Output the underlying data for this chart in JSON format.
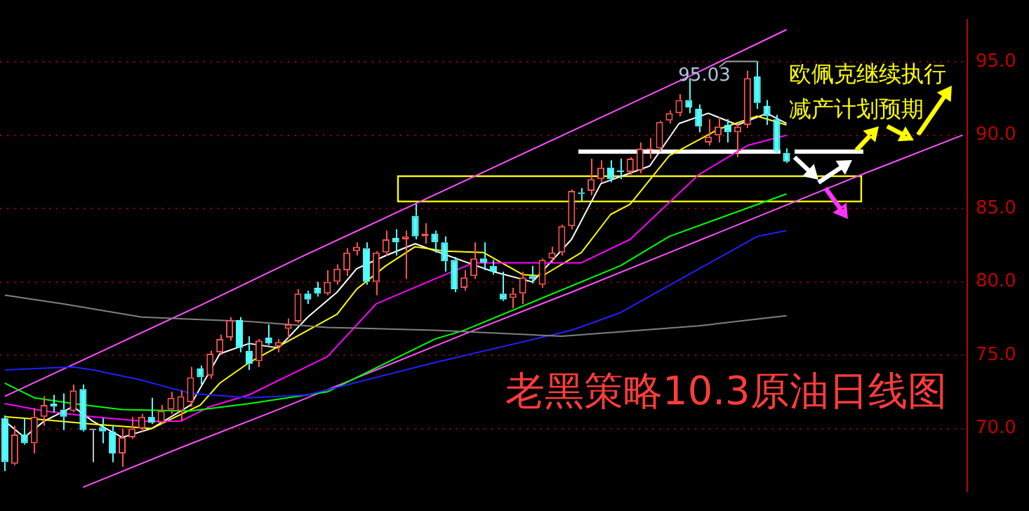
{
  "chart_data": {
    "type": "candlestick",
    "title": "老黑策略10.3原油日线图",
    "annotations": [
      {
        "text": "95.03",
        "y": 95.03
      },
      "欧佩克继续执行减产计划预期"
    ],
    "categories": [
      null,
      null,
      null,
      null,
      null,
      null,
      null,
      null,
      null,
      null,
      null,
      null,
      null,
      null,
      null,
      null,
      null,
      null,
      null,
      null,
      null,
      null,
      null,
      null,
      null,
      null,
      null,
      null,
      null,
      null,
      null,
      null,
      null,
      null,
      null,
      null,
      null,
      null,
      null,
      null,
      null,
      null,
      null,
      null,
      null,
      null,
      null,
      null,
      null,
      null,
      null,
      null,
      null,
      null,
      null,
      null,
      null,
      null,
      null,
      null,
      null,
      null,
      null,
      null,
      null,
      null,
      null,
      null,
      null,
      null,
      null,
      null,
      null,
      null,
      null,
      null,
      null,
      null,
      null,
      null,
      null,
      null,
      null,
      null,
      null,
      null,
      null,
      null,
      null,
      null,
      null,
      null,
      null,
      null,
      null,
      null,
      null,
      null,
      null
    ],
    "ohlc": [
      [
        70.7,
        70.9,
        67.1,
        67.7
      ],
      [
        67.6,
        70.2,
        67.5,
        69.6
      ],
      [
        69.6,
        70.7,
        68.9,
        69.0
      ],
      [
        69.0,
        71.4,
        68.3,
        70.8
      ],
      [
        70.8,
        72.2,
        70.2,
        71.6
      ],
      [
        71.7,
        72.3,
        71.1,
        71.5
      ],
      [
        71.3,
        72.4,
        69.9,
        70.8
      ],
      [
        71.2,
        73.0,
        71.1,
        72.6
      ],
      [
        72.7,
        73.0,
        69.8,
        69.9
      ],
      [
        69.9,
        69.9,
        67.7,
        69.9
      ],
      [
        70.1,
        70.7,
        69.0,
        69.8
      ],
      [
        69.8,
        70.2,
        67.7,
        68.3
      ],
      [
        68.3,
        70.0,
        67.4,
        69.4
      ],
      [
        69.4,
        70.8,
        69.3,
        70.0
      ],
      [
        70.0,
        71.0,
        69.8,
        70.8
      ],
      [
        70.8,
        72.1,
        70.3,
        70.4
      ],
      [
        70.4,
        71.6,
        70.3,
        71.2
      ],
      [
        71.3,
        72.5,
        71.0,
        72.1
      ],
      [
        71.2,
        72.6,
        70.5,
        72.2
      ],
      [
        71.8,
        74.2,
        71.5,
        73.5
      ],
      [
        74.1,
        74.3,
        73.0,
        73.5
      ],
      [
        73.6,
        75.3,
        73.4,
        75.1
      ],
      [
        75.2,
        76.4,
        75.0,
        76.1
      ],
      [
        76.2,
        77.6,
        76.0,
        77.4
      ],
      [
        77.4,
        77.6,
        75.2,
        75.5
      ],
      [
        75.3,
        76.3,
        74.0,
        74.4
      ],
      [
        74.6,
        76.1,
        74.2,
        76.0
      ],
      [
        76.2,
        77.1,
        75.7,
        75.8
      ],
      [
        75.6,
        76.1,
        75.2,
        75.9
      ],
      [
        76.8,
        77.5,
        76.2,
        77.1
      ],
      [
        77.3,
        79.5,
        77.2,
        79.2
      ],
      [
        79.2,
        79.4,
        78.5,
        78.8
      ],
      [
        79.6,
        80.0,
        79.0,
        79.2
      ],
      [
        79.2,
        80.8,
        79.1,
        80.0
      ],
      [
        80.0,
        81.2,
        79.8,
        80.9
      ],
      [
        80.8,
        82.3,
        80.4,
        82.0
      ],
      [
        82.1,
        82.7,
        81.8,
        82.4
      ],
      [
        82.3,
        82.7,
        79.8,
        80.0
      ],
      [
        80.0,
        82.1,
        79.1,
        82.0
      ],
      [
        82.0,
        83.5,
        81.8,
        82.9
      ],
      [
        83.0,
        83.6,
        81.8,
        82.7
      ],
      [
        82.9,
        83.5,
        80.2,
        83.1
      ],
      [
        84.5,
        85.3,
        82.9,
        83.1
      ],
      [
        83.1,
        84.0,
        82.6,
        83.3
      ],
      [
        83.3,
        83.5,
        82.0,
        82.7
      ],
      [
        82.7,
        83.1,
        80.7,
        81.4
      ],
      [
        81.5,
        81.7,
        79.3,
        79.5
      ],
      [
        79.6,
        80.8,
        79.4,
        80.3
      ],
      [
        80.4,
        82.7,
        80.2,
        81.6
      ],
      [
        81.6,
        82.7,
        80.8,
        81.3
      ],
      [
        81.1,
        81.5,
        80.5,
        80.7
      ],
      [
        79.2,
        80.7,
        78.7,
        78.8
      ],
      [
        78.9,
        79.6,
        78.2,
        79.2
      ],
      [
        79.2,
        80.7,
        78.5,
        80.3
      ],
      [
        80.4,
        81.1,
        79.9,
        80.2
      ],
      [
        79.8,
        81.6,
        79.6,
        81.5
      ],
      [
        81.6,
        82.4,
        81.3,
        82.0
      ],
      [
        82.0,
        83.9,
        81.8,
        83.8
      ],
      [
        83.8,
        86.3,
        83.6,
        86.2
      ],
      [
        86.1,
        86.4,
        85.5,
        86.0
      ],
      [
        86.2,
        88.4,
        85.9,
        87.0
      ],
      [
        87.0,
        88.3,
        86.8,
        87.8
      ],
      [
        87.8,
        88.3,
        86.8,
        87.0
      ],
      [
        87.6,
        88.4,
        87.0,
        87.5
      ],
      [
        87.5,
        88.5,
        87.3,
        88.4
      ],
      [
        87.6,
        89.5,
        87.4,
        89.1
      ],
      [
        89.0,
        89.8,
        88.4,
        89.1
      ],
      [
        89.1,
        91.0,
        88.9,
        90.9
      ],
      [
        91.0,
        91.7,
        90.8,
        91.5
      ],
      [
        91.5,
        92.8,
        91.3,
        92.4
      ],
      [
        92.4,
        93.9,
        91.5,
        91.9
      ],
      [
        91.8,
        92.1,
        90.2,
        90.6
      ],
      [
        89.5,
        91.1,
        89.3,
        89.9
      ],
      [
        90.0,
        91.2,
        89.5,
        90.6
      ],
      [
        90.7,
        91.1,
        89.5,
        90.2
      ],
      [
        90.2,
        90.8,
        88.5,
        90.6
      ],
      [
        90.7,
        94.4,
        90.5,
        93.9
      ],
      [
        94.0,
        95.03,
        91.8,
        92.2
      ],
      [
        92.0,
        92.4,
        90.7,
        91.3
      ],
      [
        91.1,
        91.4,
        88.8,
        88.9
      ],
      [
        88.8,
        89.1,
        88.1,
        88.2
      ],
      null,
      null,
      null,
      null,
      null,
      null,
      null,
      null,
      null,
      null,
      null,
      null,
      null,
      null,
      null,
      null,
      null,
      null
    ],
    "colors": [
      "#54fcfc",
      "#ff5454",
      "#54fcfc",
      "#ff5454",
      "#ff5454",
      "#54fcfc",
      "#54fcfc",
      "#ff5454",
      "#54fcfc",
      "#c0c0c0",
      "#54fcfc",
      "#54fcfc",
      "#ff5454",
      "#ff5454",
      "#ff5454",
      "#54fcfc",
      "#ff5454",
      "#ff5454",
      "#ff5454",
      "#ff5454",
      "#54fcfc",
      "#ff5454",
      "#ff5454",
      "#ff5454",
      "#54fcfc",
      "#54fcfc",
      "#ff5454",
      "#54fcfc",
      "#ff5454",
      "#ff5454",
      "#ff5454",
      "#54fcfc",
      "#54fcfc",
      "#ff5454",
      "#ff5454",
      "#ff5454",
      "#ff5454",
      "#54fcfc",
      "#ff5454",
      "#ff5454",
      "#54fcfc",
      "#ff5454",
      "#54fcfc",
      "#ff5454",
      "#54fcfc",
      "#54fcfc",
      "#54fcfc",
      "#ff5454",
      "#ff5454",
      "#54fcfc",
      "#54fcfc",
      "#54fcfc",
      "#ff5454",
      "#ff5454",
      "#54fcfc",
      "#ff5454",
      "#ff5454",
      "#ff5454",
      "#ff5454",
      "#54fcfc",
      "#ff5454",
      "#ff5454",
      "#54fcfc",
      "#54fcfc",
      "#ff5454",
      "#ff5454",
      "#ff5454",
      "#ff5454",
      "#ff5454",
      "#ff5454",
      "#54fcfc",
      "#54fcfc",
      "#ff5454",
      "#ff5454",
      "#54fcfc",
      "#ff5454",
      "#ff5454",
      "#54fcfc",
      "#54fcfc",
      "#54fcfc",
      "#54fcfc",
      null,
      null,
      null,
      null,
      null,
      null,
      null,
      null,
      null,
      null,
      null,
      null,
      null,
      null,
      null,
      null,
      null,
      null
    ],
    "series": [
      {
        "type": "line",
        "color": "#808080",
        "values": [
          79.1,
          null,
          null,
          null,
          null,
          null,
          78.5,
          null,
          null,
          null,
          null,
          null,
          null,
          null,
          77.6,
          null,
          null,
          null,
          null,
          null,
          null,
          null,
          null,
          null,
          null,
          77.3,
          null,
          null,
          null,
          null,
          null,
          null,
          null,
          76.9,
          null,
          null,
          null,
          null,
          null,
          null,
          null,
          null,
          null,
          null,
          76.7,
          null,
          null,
          null,
          null,
          null,
          null,
          null,
          null,
          null,
          null,
          null,
          null,
          76.3,
          null,
          null,
          null,
          null,
          null,
          null,
          null,
          null,
          null,
          null,
          null,
          null,
          null,
          77.0,
          null,
          null,
          null,
          null,
          null,
          null,
          null,
          null,
          77.7,
          null,
          null,
          null,
          null,
          null,
          null,
          null,
          null,
          null,
          null,
          null,
          null,
          null,
          null,
          null,
          null,
          null,
          null
        ]
      },
      {
        "type": "line",
        "color": "#2020ff",
        "values": [
          74.0,
          null,
          null,
          null,
          null,
          null,
          null,
          74.2,
          null,
          74.0,
          null,
          null,
          null,
          null,
          73.3,
          null,
          null,
          null,
          null,
          72.4,
          null,
          null,
          null,
          null,
          null,
          72.1,
          null,
          null,
          null,
          null,
          null,
          72.3,
          null,
          null,
          null,
          null,
          null,
          null,
          null,
          null,
          null,
          null,
          null,
          null,
          74.5,
          null,
          null,
          null,
          null,
          null,
          null,
          null,
          null,
          null,
          null,
          null,
          null,
          null,
          76.7,
          null,
          null,
          null,
          null,
          77.9,
          null,
          null,
          null,
          null,
          null,
          null,
          null,
          null,
          null,
          null,
          null,
          null,
          null,
          83.1,
          null,
          null,
          83.5,
          null,
          null,
          null,
          null,
          null,
          null,
          null,
          null,
          null,
          null,
          null,
          null,
          null,
          null,
          null,
          null,
          null,
          null
        ]
      },
      {
        "type": "line",
        "color": "#00ff00",
        "values": [
          73.1,
          null,
          null,
          72.1,
          null,
          null,
          null,
          71.7,
          null,
          null,
          null,
          null,
          71.3,
          null,
          null,
          null,
          null,
          null,
          null,
          71.2,
          null,
          null,
          null,
          null,
          null,
          71.7,
          null,
          null,
          null,
          null,
          null,
          null,
          null,
          72.5,
          null,
          null,
          null,
          null,
          null,
          null,
          null,
          null,
          null,
          null,
          76.1,
          null,
          null,
          76.7,
          null,
          null,
          null,
          null,
          null,
          null,
          null,
          null,
          null,
          null,
          null,
          null,
          null,
          null,
          null,
          81.1,
          null,
          null,
          null,
          null,
          83.1,
          null,
          null,
          null,
          null,
          null,
          null,
          null,
          null,
          null,
          null,
          null,
          86.0,
          null,
          null,
          null,
          null,
          null,
          null,
          null,
          null,
          null,
          null,
          null,
          null,
          null,
          null,
          null,
          null,
          null,
          null
        ]
      },
      {
        "type": "line",
        "color": "#ff00ff",
        "values": [
          71.7,
          null,
          null,
          null,
          71.2,
          null,
          null,
          null,
          null,
          70.8,
          null,
          null,
          null,
          null,
          70.5,
          null,
          null,
          null,
          70.5,
          null,
          null,
          71.5,
          null,
          null,
          null,
          72.3,
          null,
          null,
          null,
          null,
          null,
          null,
          null,
          74.9,
          null,
          null,
          null,
          null,
          78.5,
          null,
          null,
          null,
          null,
          null,
          80.2,
          null,
          null,
          null,
          81.3,
          null,
          null,
          null,
          null,
          null,
          null,
          null,
          null,
          null,
          null,
          81.3,
          null,
          null,
          null,
          null,
          82.9,
          null,
          null,
          null,
          null,
          null,
          null,
          87.3,
          null,
          null,
          null,
          null,
          89.3,
          null,
          null,
          null,
          90.0,
          null,
          null,
          null,
          null,
          null,
          null,
          null,
          null,
          null,
          null,
          null,
          null,
          null,
          null,
          null,
          null,
          null,
          null
        ]
      },
      {
        "type": "line",
        "color": "#ffff00",
        "values": [
          70.8,
          null,
          null,
          null,
          70.6,
          null,
          null,
          null,
          null,
          70.3,
          null,
          null,
          null,
          null,
          null,
          70.0,
          null,
          null,
          null,
          null,
          71.6,
          null,
          73.1,
          null,
          null,
          74.5,
          null,
          null,
          75.6,
          null,
          null,
          null,
          null,
          null,
          77.8,
          null,
          79.5,
          null,
          null,
          81.1,
          null,
          null,
          82.4,
          null,
          null,
          82.1,
          null,
          null,
          null,
          82.0,
          null,
          null,
          null,
          80.5,
          null,
          80.4,
          null,
          null,
          null,
          82.0,
          null,
          null,
          84.6,
          null,
          85.3,
          null,
          null,
          null,
          88.6,
          null,
          null,
          null,
          null,
          90.4,
          null,
          null,
          null,
          91.3,
          null,
          null,
          90.7,
          null,
          null,
          null,
          null,
          null,
          null,
          null,
          null,
          null,
          null,
          null,
          null,
          null,
          null,
          null,
          null,
          null,
          null
        ]
      },
      {
        "type": "line",
        "color": "#ffffff",
        "values": [
          70.5,
          null,
          69.4,
          null,
          70.5,
          null,
          null,
          71.5,
          null,
          70.5,
          null,
          null,
          69.4,
          null,
          null,
          70.0,
          null,
          null,
          null,
          71.6,
          null,
          null,
          75.1,
          null,
          null,
          75.8,
          null,
          null,
          75.5,
          null,
          null,
          77.6,
          null,
          null,
          79.3,
          null,
          80.9,
          null,
          null,
          81.8,
          null,
          null,
          82.6,
          null,
          null,
          null,
          null,
          81.4,
          null,
          null,
          80.7,
          null,
          null,
          null,
          80.0,
          null,
          null,
          null,
          82.9,
          null,
          null,
          86.7,
          null,
          null,
          null,
          null,
          87.9,
          null,
          null,
          90.8,
          null,
          null,
          91.5,
          null,
          null,
          90.7,
          null,
          null,
          91.5,
          null,
          90.8,
          null,
          null,
          null,
          null,
          null,
          null,
          null,
          null,
          null,
          null,
          null,
          null,
          null,
          null,
          null,
          null,
          null,
          null
        ]
      },
      {
        "type": "line",
        "color": "#ff50ff",
        "values": [
          72.2,
          null,
          null,
          null,
          null,
          null,
          null,
          null,
          null,
          null,
          75.3,
          null,
          null,
          null,
          null,
          null,
          null,
          null,
          null,
          null,
          78.4,
          null,
          null,
          null,
          null,
          null,
          null,
          null,
          null,
          null,
          81.6,
          null,
          null,
          null,
          null,
          null,
          null,
          null,
          null,
          null,
          84.7,
          null,
          null,
          null,
          null,
          null,
          null,
          null,
          null,
          null,
          87.8,
          null,
          null,
          null,
          null,
          null,
          null,
          null,
          null,
          null,
          90.9,
          null,
          null,
          null,
          null,
          null,
          null,
          null,
          null,
          null,
          94.0,
          null,
          null,
          null,
          null,
          null,
          null,
          null,
          null,
          null,
          97.2,
          null,
          null,
          null,
          null,
          null,
          null,
          null,
          null,
          null,
          null,
          null,
          null,
          null,
          null,
          null,
          null,
          null,
          null
        ]
      },
      {
        "type": "line",
        "color": "#ff50ff",
        "values": [
          null,
          null,
          null,
          null,
          null,
          null,
          null,
          null,
          66.0,
          null,
          null,
          null,
          null,
          null,
          null,
          null,
          null,
          null,
          68.7,
          null,
          null,
          null,
          null,
          null,
          null,
          null,
          null,
          null,
          71.3,
          null,
          null,
          null,
          null,
          null,
          null,
          null,
          null,
          null,
          74.0,
          null,
          null,
          null,
          null,
          null,
          null,
          null,
          null,
          null,
          76.7,
          null,
          null,
          null,
          null,
          null,
          null,
          null,
          null,
          null,
          79.3,
          null,
          null,
          null,
          null,
          null,
          null,
          null,
          null,
          null,
          82.0,
          null,
          null,
          null,
          null,
          null,
          null,
          null,
          null,
          null,
          84.7,
          null,
          null,
          null,
          null,
          null,
          null,
          null,
          null,
          null,
          87.4,
          null,
          null,
          null,
          null,
          null,
          null,
          null,
          null,
          null,
          90.0
        ]
      }
    ],
    "ylim": [
      65.7,
      97.9
    ],
    "yticks": [
      {
        "value": 70,
        "label": "70.0"
      },
      {
        "value": 75,
        "label": "75.0"
      },
      {
        "value": 80,
        "label": "80.0"
      },
      {
        "value": 85,
        "label": "85.0"
      },
      {
        "value": 90,
        "label": "90.0"
      },
      {
        "value": 95,
        "label": "95.0"
      }
    ],
    "grid": "y",
    "legend": false,
    "tick_labels": "y",
    "marker": "none",
    "line_style": "solid"
  }
}
